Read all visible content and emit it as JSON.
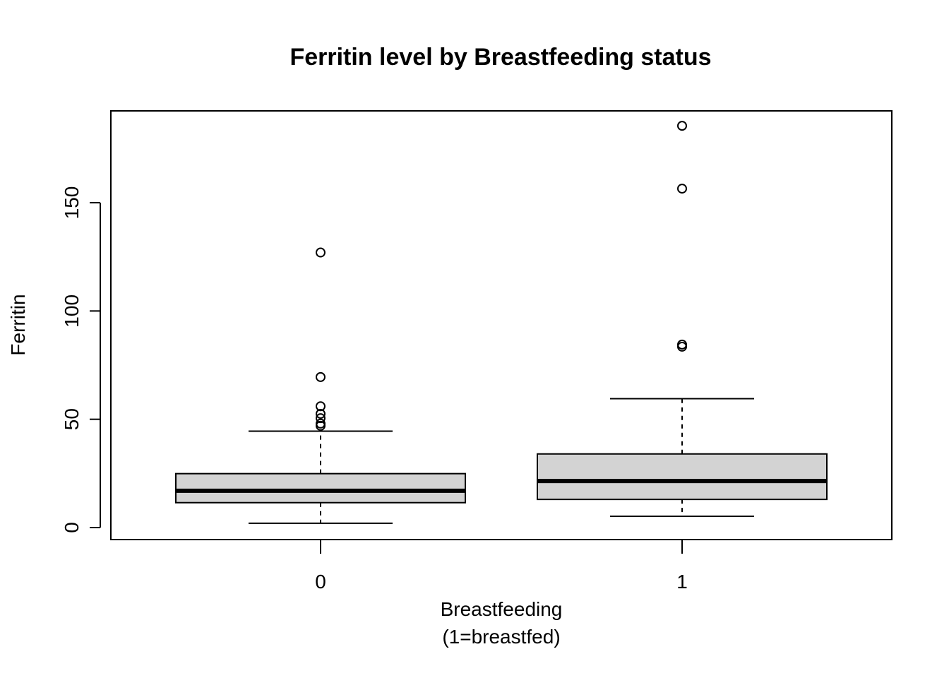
{
  "chart_data": {
    "type": "boxplot",
    "title": "Ferritin level by Breastfeeding status",
    "xlabel_line1": "Breastfeeding",
    "xlabel_line2": "(1=breastfed)",
    "ylabel": "Ferritin",
    "categories": [
      "0",
      "1"
    ],
    "ylim": [
      -5,
      193
    ],
    "yticks": [
      0,
      50,
      100,
      150
    ],
    "grid": false,
    "boxes": [
      {
        "category": "0",
        "whisker_low": 2,
        "q1": 11.5,
        "median": 17,
        "q3": 24.9,
        "whisker_high": 44.5,
        "outliers": [
          127,
          69.5,
          56,
          52.5,
          50.5,
          48,
          47
        ]
      },
      {
        "category": "1",
        "whisker_low": 5.2,
        "q1": 13,
        "median": 21.5,
        "q3": 34,
        "whisker_high": 59.5,
        "outliers": [
          185.5,
          156.5,
          84.5,
          83.5
        ]
      }
    ],
    "colors": {
      "box_fill": "#d3d3d3",
      "stroke": "#000000"
    }
  }
}
